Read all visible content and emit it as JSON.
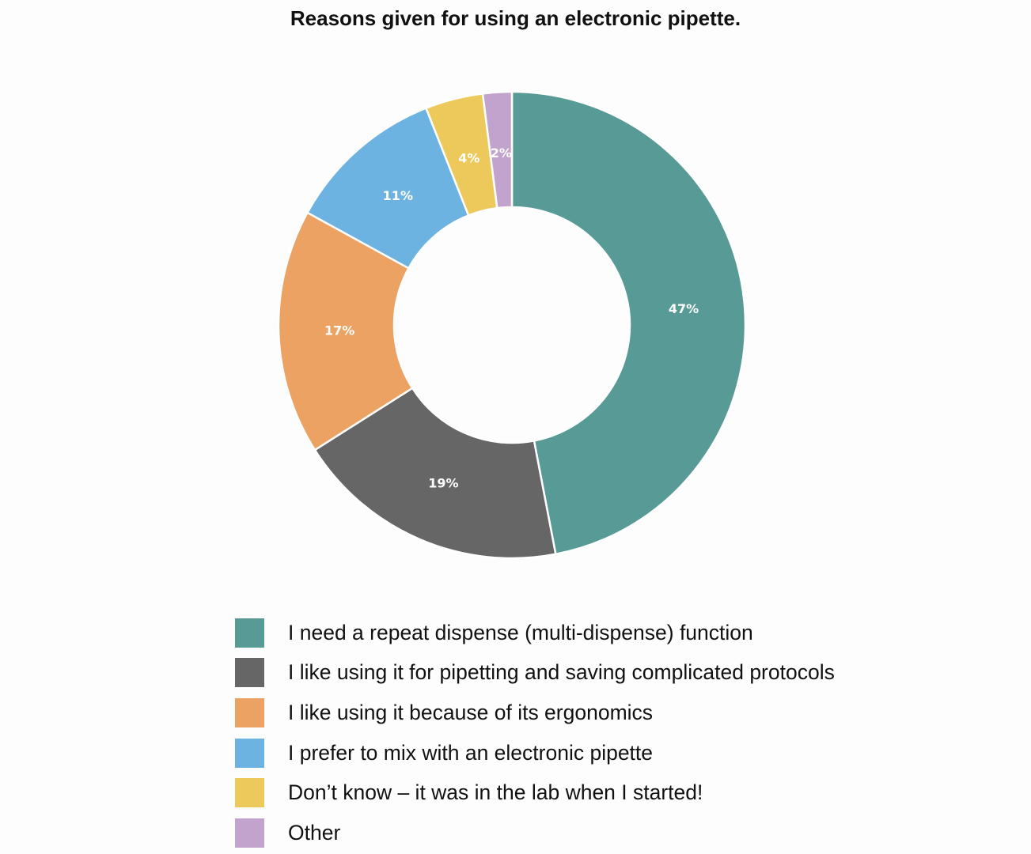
{
  "chart_data": {
    "type": "pie",
    "donut": true,
    "title": "Reasons given for using an electronic pipette.",
    "legend_placement": "bottom",
    "slices": [
      {
        "label": "I need a repeat dispense (multi-dispense) function",
        "value": 47,
        "data_label": "47%",
        "color": "#579a96"
      },
      {
        "label": "I like using it for pipetting and saving complicated protocols",
        "value": 19,
        "data_label": "19%",
        "color": "#666666"
      },
      {
        "label": "I like using it because of its ergonomics",
        "value": 17,
        "data_label": "17%",
        "color": "#eca263"
      },
      {
        "label": "I prefer to mix with an electronic pipette",
        "value": 11,
        "data_label": "11%",
        "color": "#6cb3e1"
      },
      {
        "label": "Don’t know – it was in the lab when I started!",
        "value": 4,
        "data_label": "4%",
        "color": "#edc95b"
      },
      {
        "label": "Other",
        "value": 2,
        "data_label": "2%",
        "color": "#c2a3cd"
      }
    ]
  }
}
